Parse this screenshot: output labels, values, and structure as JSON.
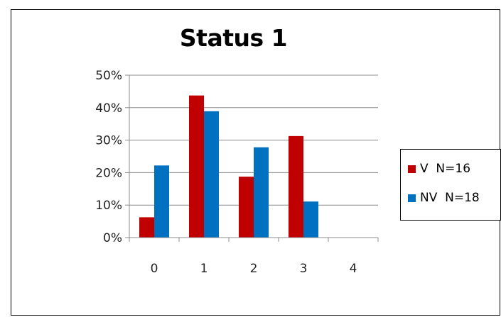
{
  "chart_data": {
    "type": "bar",
    "title": "Status 1",
    "xlabel": "",
    "ylabel": "",
    "categories": [
      "0",
      "1",
      "2",
      "3",
      "4"
    ],
    "y_tick_labels": [
      "0%",
      "10%",
      "20%",
      "30%",
      "40%",
      "50%"
    ],
    "ylim": [
      0,
      50
    ],
    "grid": true,
    "legend_position": "right",
    "series": [
      {
        "name": "V  N=16",
        "color": "#C00000",
        "values": [
          6.25,
          43.75,
          18.75,
          31.25,
          0
        ]
      },
      {
        "name": "NV  N=18",
        "color": "#0070C0",
        "values": [
          22.2,
          38.9,
          27.8,
          11.1,
          0
        ]
      }
    ]
  }
}
